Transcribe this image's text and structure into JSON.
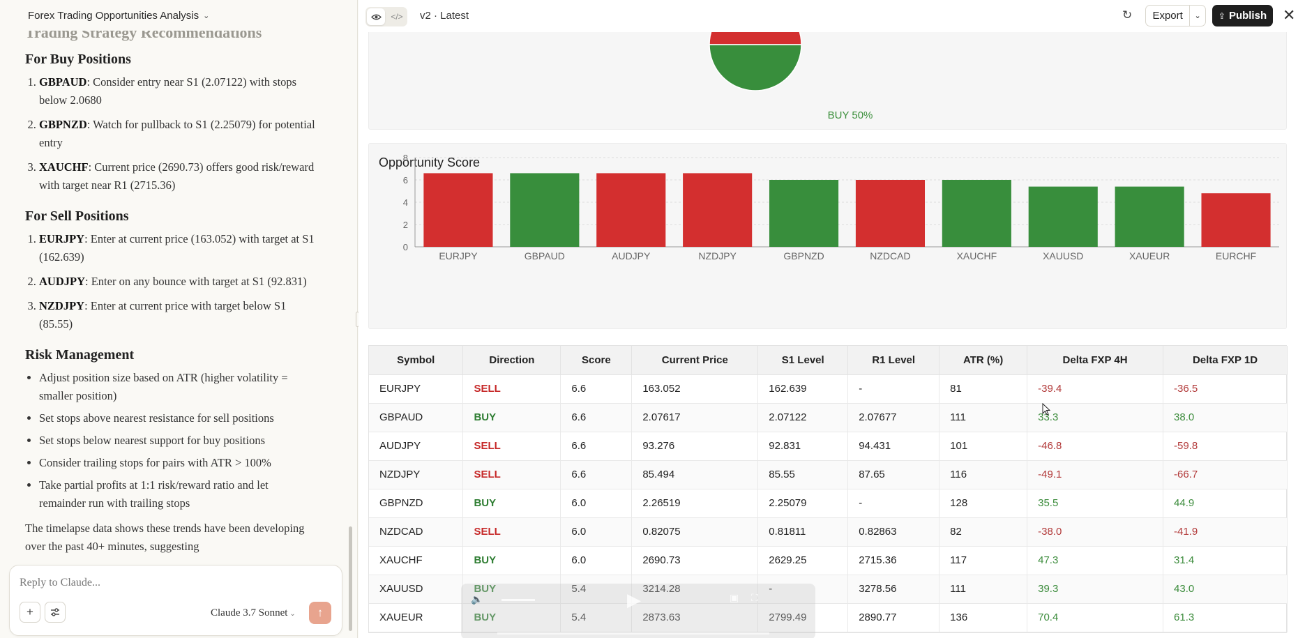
{
  "chat": {
    "title": "Forex Trading Opportunities Analysis",
    "section_heading": "Trading Strategy Recommendations",
    "buy_heading": "For Buy Positions",
    "buy_items": [
      {
        "sym": "GBPAUD",
        "text": ": Consider entry near S1 (2.07122) with stops below 2.0680"
      },
      {
        "sym": "GBPNZD",
        "text": ": Watch for pullback to S1 (2.25079) for potential entry"
      },
      {
        "sym": "XAUCHF",
        "text": ": Current price (2690.73) offers good risk/reward with target near R1 (2715.36)"
      }
    ],
    "sell_heading": "For Sell Positions",
    "sell_items": [
      {
        "sym": "EURJPY",
        "text": ": Enter at current price (163.052) with target at S1 (162.639)"
      },
      {
        "sym": "AUDJPY",
        "text": ": Enter on any bounce with target at S1 (92.831)"
      },
      {
        "sym": "NZDJPY",
        "text": ": Enter at current price with target below S1 (85.55)"
      }
    ],
    "risk_heading": "Risk Management",
    "risk_items": [
      "Adjust position size based on ATR (higher volatility = smaller position)",
      "Set stops above nearest resistance for sell positions",
      "Set stops below nearest support for buy positions",
      "Consider trailing stops for pairs with ATR > 100%",
      "Take partial profits at 1:1 risk/reward ratio and let remainder run with trailing stops"
    ],
    "trailing_text": "The timelapse data shows these trends have been developing over the past 40+ minutes, suggesting",
    "composer_placeholder": "Reply to Claude...",
    "model_name": "Claude 3.7 Sonnet"
  },
  "artifact": {
    "version": "v2 · Latest",
    "export_label": "Export",
    "publish_label": "Publish",
    "pie_label": "BUY 50%",
    "pie": {
      "buy_pct": 50,
      "sell_pct": 50,
      "buy_color": "#388e3c",
      "sell_color": "#d32f2f"
    }
  },
  "chart_data": {
    "type": "bar",
    "title": "Opportunity Score",
    "categories": [
      "EURJPY",
      "GBPAUD",
      "AUDJPY",
      "NZDJPY",
      "GBPNZD",
      "NZDCAD",
      "XAUCHF",
      "XAUUSD",
      "XAUEUR",
      "EURCHF"
    ],
    "values": [
      6.6,
      6.6,
      6.6,
      6.6,
      6.0,
      6.0,
      6.0,
      5.4,
      5.4,
      4.8
    ],
    "colors": [
      "#d32f2f",
      "#388e3c",
      "#d32f2f",
      "#d32f2f",
      "#388e3c",
      "#d32f2f",
      "#388e3c",
      "#388e3c",
      "#388e3c",
      "#d32f2f"
    ],
    "ylim": [
      0,
      8
    ],
    "yticks": [
      0,
      2,
      4,
      6,
      8
    ],
    "grid": true
  },
  "table": {
    "headers": [
      "Symbol",
      "Direction",
      "Score",
      "Current Price",
      "S1 Level",
      "R1 Level",
      "ATR (%)",
      "Delta FXP 4H",
      "Delta FXP 1D"
    ],
    "rows": [
      [
        "EURJPY",
        "SELL",
        "6.6",
        "163.052",
        "162.639",
        "-",
        "81",
        "-39.4",
        "-36.5"
      ],
      [
        "GBPAUD",
        "BUY",
        "6.6",
        "2.07617",
        "2.07122",
        "2.07677",
        "111",
        "33.3",
        "38.0"
      ],
      [
        "AUDJPY",
        "SELL",
        "6.6",
        "93.276",
        "92.831",
        "94.431",
        "101",
        "-46.8",
        "-59.8"
      ],
      [
        "NZDJPY",
        "SELL",
        "6.6",
        "85.494",
        "85.55",
        "87.65",
        "116",
        "-49.1",
        "-66.7"
      ],
      [
        "GBPNZD",
        "BUY",
        "6.0",
        "2.26519",
        "2.25079",
        "-",
        "128",
        "35.5",
        "44.9"
      ],
      [
        "NZDCAD",
        "SELL",
        "6.0",
        "0.82075",
        "0.81811",
        "0.82863",
        "82",
        "-38.0",
        "-41.9"
      ],
      [
        "XAUCHF",
        "BUY",
        "6.0",
        "2690.73",
        "2629.25",
        "2715.36",
        "117",
        "47.3",
        "31.4"
      ],
      [
        "XAUUSD",
        "BUY",
        "5.4",
        "3214.28",
        "-",
        "3278.56",
        "111",
        "39.3",
        "43.0"
      ],
      [
        "XAUEUR",
        "BUY",
        "5.4",
        "2873.63",
        "2799.49",
        "2890.77",
        "136",
        "70.4",
        "61.3"
      ]
    ]
  },
  "icons": {
    "preview": "eye-icon",
    "code": "code-icon",
    "refresh": "refresh-icon",
    "publish": "upload-icon",
    "close": "close-icon",
    "add": "plus-icon",
    "tools": "sliders-icon",
    "send": "arrow-up-icon"
  }
}
